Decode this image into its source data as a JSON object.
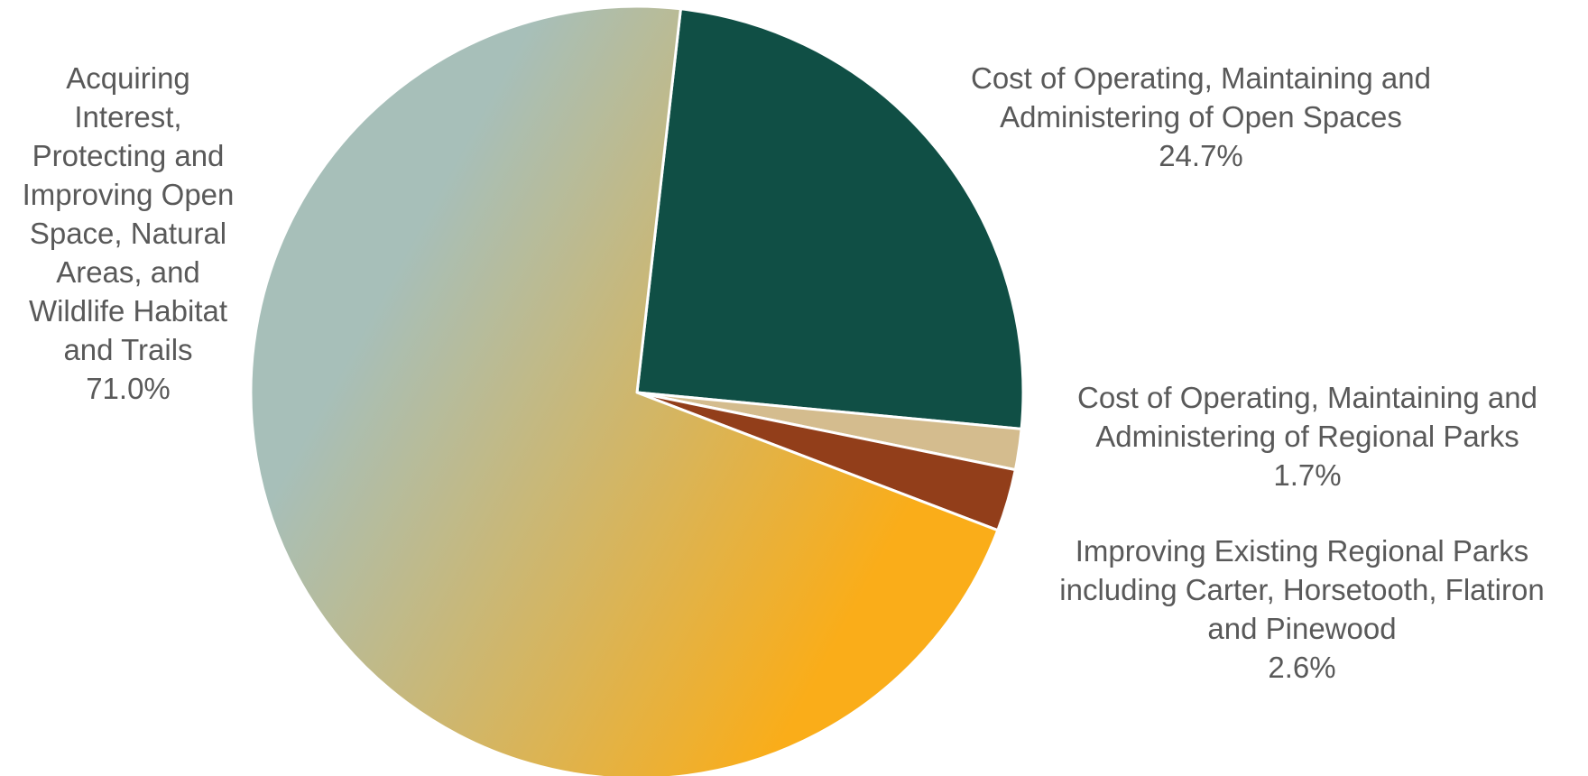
{
  "chart_data": {
    "type": "pie",
    "title": "",
    "slices": [
      {
        "label_lines": [
          "Cost of Operating, Maintaining and",
          "Administering of Open Spaces"
        ],
        "value": 24.7,
        "value_label": "24.7%",
        "color": "#104F45"
      },
      {
        "label_lines": [
          "Cost of Operating, Maintaining and",
          "Administering of Regional Parks"
        ],
        "value": 1.7,
        "value_label": "1.7%",
        "color": "#D4BC8E"
      },
      {
        "label_lines": [
          "Improving Existing Regional Parks",
          "including Carter, Horsetooth, Flatiron",
          "and Pinewood"
        ],
        "value": 2.6,
        "value_label": "2.6%",
        "color": "#923E1A"
      },
      {
        "label_lines": [
          "Acquiring",
          "Interest,",
          "Protecting and",
          "Improving Open",
          "Space, Natural",
          "Areas, and",
          "Wildlife Habitat",
          "and Trails"
        ],
        "value": 71.0,
        "value_label": "71.0%",
        "color_gradient": [
          "#A7BFB9",
          "#FAAD19"
        ]
      }
    ],
    "legend": "none",
    "label_color": "#595959"
  }
}
